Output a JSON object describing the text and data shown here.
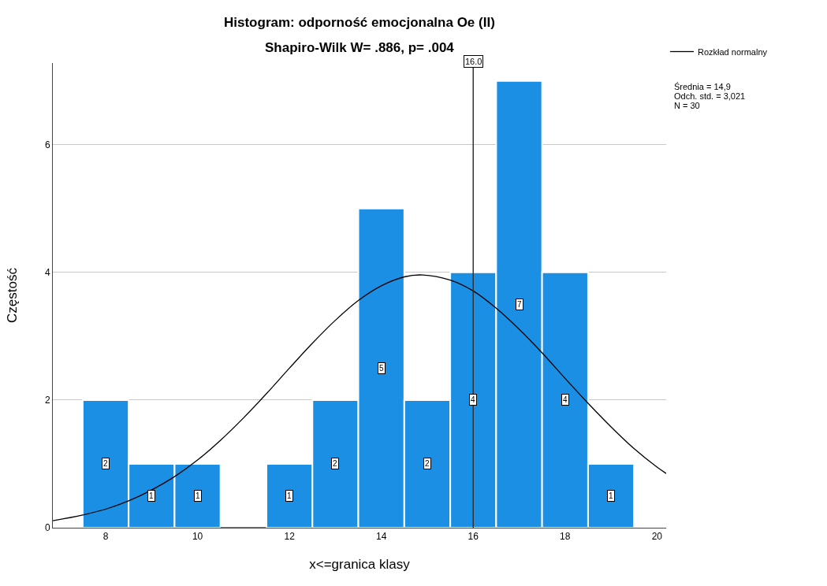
{
  "chart_data": {
    "type": "histogram",
    "title": "Histogram: odporność emocjonalna Oe (II)",
    "subtitle": "Shapiro-Wilk W= .886, p= .004",
    "xlabel": "x<=granica klasy",
    "ylabel": "Częstość",
    "bins": [
      7.5,
      8.5,
      9.5,
      10.5,
      11.5,
      12.5,
      13.5,
      14.5,
      15.5,
      16.5,
      17.5,
      18.5,
      19.5
    ],
    "values": [
      2,
      1,
      1,
      0,
      1,
      2,
      5,
      2,
      4,
      7,
      4,
      1
    ],
    "value_labels": [
      "2",
      "1",
      "1",
      null,
      "1",
      "2",
      "5",
      "2",
      "4",
      "7",
      "4",
      "1"
    ],
    "color": "#1a8fe3",
    "series": [
      {
        "name": "Rozkład normalny",
        "type": "line",
        "color": "#000000",
        "x": [
          6.85,
          7.5,
          8,
          8.5,
          9,
          9.5,
          10,
          10.5,
          11,
          11.5,
          12,
          12.5,
          13,
          13.5,
          14,
          14.5,
          14.9,
          15.5,
          16,
          16.5,
          17,
          17.5,
          18,
          18.5,
          19,
          19.5,
          20,
          20.2
        ],
        "values": [
          0.11,
          0.2,
          0.29,
          0.42,
          0.59,
          0.8,
          1.06,
          1.37,
          1.72,
          2.1,
          2.5,
          2.89,
          3.25,
          3.56,
          3.79,
          3.93,
          3.96,
          3.88,
          3.71,
          3.44,
          3.11,
          2.74,
          2.34,
          1.95,
          1.58,
          1.24,
          0.95,
          0.85
        ]
      }
    ],
    "ref_lines": [
      {
        "axis": "x",
        "value": 16,
        "label": "16.0",
        "color": "#333333"
      }
    ],
    "annotations": [
      "Średnia = 14,9",
      "Odch. std. = 3,021",
      "N = 30"
    ],
    "xlim": [
      6.85,
      20.2
    ],
    "xticks": [
      8,
      10,
      12,
      14,
      16,
      18,
      20
    ],
    "ylim": [
      0,
      7.28
    ],
    "yticks": [
      0,
      2,
      4,
      6
    ],
    "grid": "y",
    "legend": "top right"
  }
}
